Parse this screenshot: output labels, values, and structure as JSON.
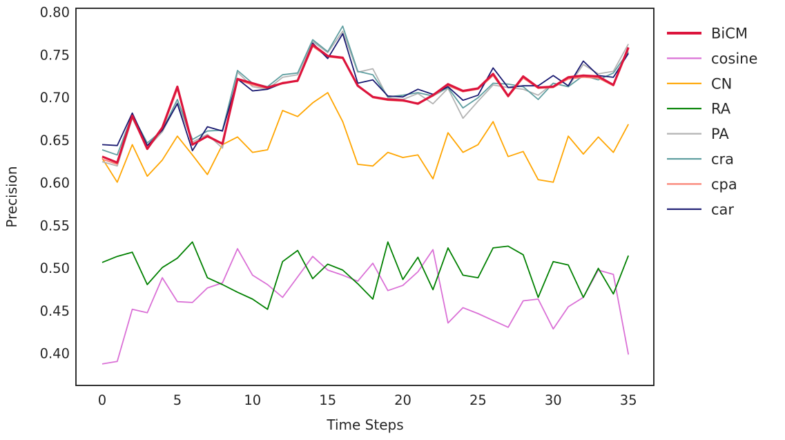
{
  "chart_data": {
    "type": "line",
    "title": "",
    "xlabel": "Time Steps",
    "ylabel": "Precision",
    "grid": false,
    "legend_position": "right-outside",
    "background_color": "#ffffff",
    "spine_color": "#1a1a1a",
    "text_color": "#262626",
    "xlim": [
      -1.745,
      36.69
    ],
    "ylim": [
      0.3628,
      0.80486
    ],
    "xticks": [
      0,
      5,
      10,
      15,
      20,
      25,
      30,
      35
    ],
    "yticks": [
      0.4,
      0.45,
      0.5,
      0.55,
      0.6,
      0.65,
      0.7,
      0.75,
      0.8
    ],
    "x": [
      0,
      1,
      2,
      3,
      4,
      5,
      6,
      7,
      8,
      9,
      10,
      11,
      12,
      13,
      14,
      15,
      16,
      17,
      18,
      19,
      20,
      21,
      22,
      23,
      24,
      25,
      26,
      27,
      28,
      29,
      30,
      31,
      32,
      33,
      34,
      35
    ],
    "series": [
      {
        "name": "BiCM",
        "color": "#dc143c",
        "linewidth": 3.2,
        "values": [
          0.631,
          0.624,
          0.679,
          0.64,
          0.665,
          0.713,
          0.645,
          0.655,
          0.646,
          0.722,
          0.717,
          0.712,
          0.717,
          0.72,
          0.762,
          0.749,
          0.747,
          0.714,
          0.701,
          0.698,
          0.697,
          0.693,
          0.703,
          0.716,
          0.708,
          0.711,
          0.728,
          0.702,
          0.725,
          0.712,
          0.713,
          0.724,
          0.726,
          0.725,
          0.715,
          0.759
        ]
      },
      {
        "name": "cosine",
        "color": "#da70d6",
        "linewidth": 1.8,
        "values": [
          0.388,
          0.391,
          0.452,
          0.448,
          0.489,
          0.461,
          0.46,
          0.477,
          0.483,
          0.523,
          0.492,
          0.481,
          0.466,
          0.49,
          0.514,
          0.498,
          0.492,
          0.485,
          0.506,
          0.474,
          0.48,
          0.496,
          0.522,
          0.436,
          0.454,
          0.447,
          0.439,
          0.431,
          0.462,
          0.464,
          0.429,
          0.455,
          0.466,
          0.498,
          0.493,
          0.399
        ]
      },
      {
        "name": "CN",
        "color": "#ffa500",
        "linewidth": 1.8,
        "values": [
          0.629,
          0.601,
          0.645,
          0.608,
          0.627,
          0.655,
          0.633,
          0.61,
          0.645,
          0.654,
          0.636,
          0.639,
          0.685,
          0.678,
          0.694,
          0.706,
          0.672,
          0.622,
          0.62,
          0.636,
          0.63,
          0.633,
          0.605,
          0.659,
          0.636,
          0.645,
          0.672,
          0.631,
          0.637,
          0.604,
          0.601,
          0.655,
          0.634,
          0.654,
          0.636,
          0.669
        ]
      },
      {
        "name": "RA",
        "color": "#008000",
        "linewidth": 1.8,
        "values": [
          0.507,
          0.514,
          0.519,
          0.481,
          0.501,
          0.512,
          0.531,
          0.489,
          0.481,
          0.472,
          0.464,
          0.452,
          0.508,
          0.521,
          0.488,
          0.505,
          0.498,
          0.482,
          0.464,
          0.531,
          0.487,
          0.513,
          0.475,
          0.524,
          0.492,
          0.489,
          0.524,
          0.526,
          0.516,
          0.466,
          0.508,
          0.504,
          0.466,
          0.5,
          0.47,
          0.515
        ]
      },
      {
        "name": "PA",
        "color": "#b3b3b3",
        "linewidth": 1.8,
        "values": [
          0.625,
          0.62,
          0.676,
          0.641,
          0.66,
          0.694,
          0.648,
          0.657,
          0.641,
          0.73,
          0.713,
          0.71,
          0.724,
          0.727,
          0.766,
          0.753,
          0.778,
          0.73,
          0.734,
          0.7,
          0.698,
          0.705,
          0.693,
          0.711,
          0.676,
          0.696,
          0.715,
          0.712,
          0.71,
          0.703,
          0.717,
          0.713,
          0.739,
          0.728,
          0.731,
          0.763
        ]
      },
      {
        "name": "cra",
        "color": "#5f9ea0",
        "linewidth": 1.8,
        "values": [
          0.639,
          0.633,
          0.68,
          0.647,
          0.662,
          0.698,
          0.651,
          0.661,
          0.662,
          0.732,
          0.717,
          0.713,
          0.727,
          0.729,
          0.768,
          0.754,
          0.784,
          0.731,
          0.727,
          0.701,
          0.703,
          0.706,
          0.702,
          0.712,
          0.688,
          0.7,
          0.717,
          0.716,
          0.713,
          0.698,
          0.717,
          0.713,
          0.726,
          0.721,
          0.729,
          0.754
        ]
      },
      {
        "name": "cpa",
        "color": "#fa8072",
        "linewidth": 1.8,
        "values": [
          0.628,
          0.622,
          0.677,
          0.641,
          0.663,
          0.71,
          0.646,
          0.654,
          0.647,
          0.721,
          0.715,
          0.711,
          0.718,
          0.719,
          0.76,
          0.748,
          0.746,
          0.715,
          0.7,
          0.697,
          0.696,
          0.694,
          0.702,
          0.714,
          0.707,
          0.71,
          0.726,
          0.701,
          0.723,
          0.711,
          0.712,
          0.722,
          0.724,
          0.723,
          0.714,
          0.757
        ]
      },
      {
        "name": "car",
        "color": "#191970",
        "linewidth": 1.8,
        "values": [
          0.645,
          0.644,
          0.682,
          0.644,
          0.662,
          0.693,
          0.638,
          0.666,
          0.661,
          0.722,
          0.708,
          0.71,
          0.717,
          0.72,
          0.764,
          0.746,
          0.775,
          0.717,
          0.721,
          0.702,
          0.701,
          0.71,
          0.704,
          0.713,
          0.697,
          0.703,
          0.735,
          0.712,
          0.714,
          0.714,
          0.726,
          0.714,
          0.743,
          0.726,
          0.724,
          0.752
        ]
      }
    ]
  }
}
